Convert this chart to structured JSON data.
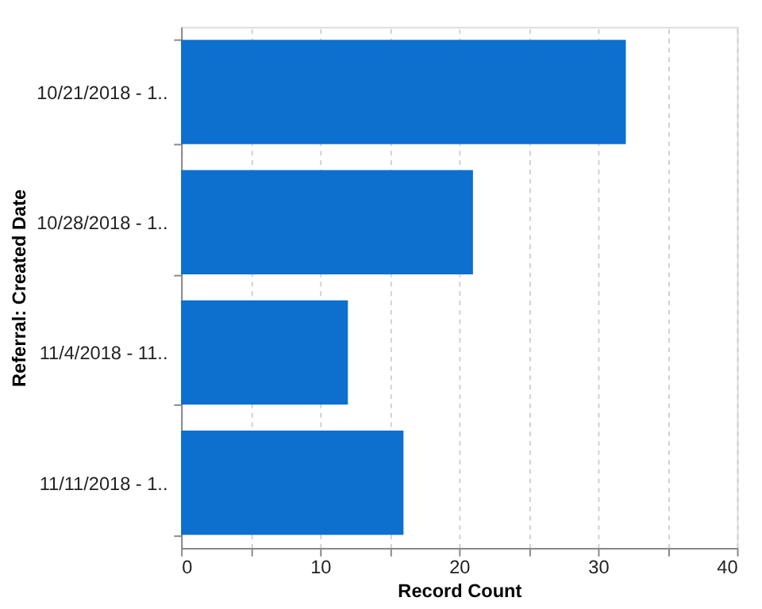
{
  "chart_data": {
    "type": "bar",
    "orientation": "horizontal",
    "xlabel": "Record Count",
    "ylabel": "Referral: Created Date",
    "categories": [
      "10/21/2018 - 1..",
      "10/28/2018 - 1..",
      "11/4/2018 - 11..",
      "11/11/2018 - 1.."
    ],
    "values": [
      32,
      21,
      12,
      16
    ],
    "color": "#0d6fce",
    "xlim": [
      0,
      40
    ],
    "xticks": [
      0,
      {
        "value": 5,
        "label": null
      },
      10,
      {
        "value": 15,
        "label": null
      },
      20,
      {
        "value": 25,
        "label": null
      },
      30,
      {
        "value": 35,
        "label": null
      },
      40
    ],
    "grid": "x"
  }
}
